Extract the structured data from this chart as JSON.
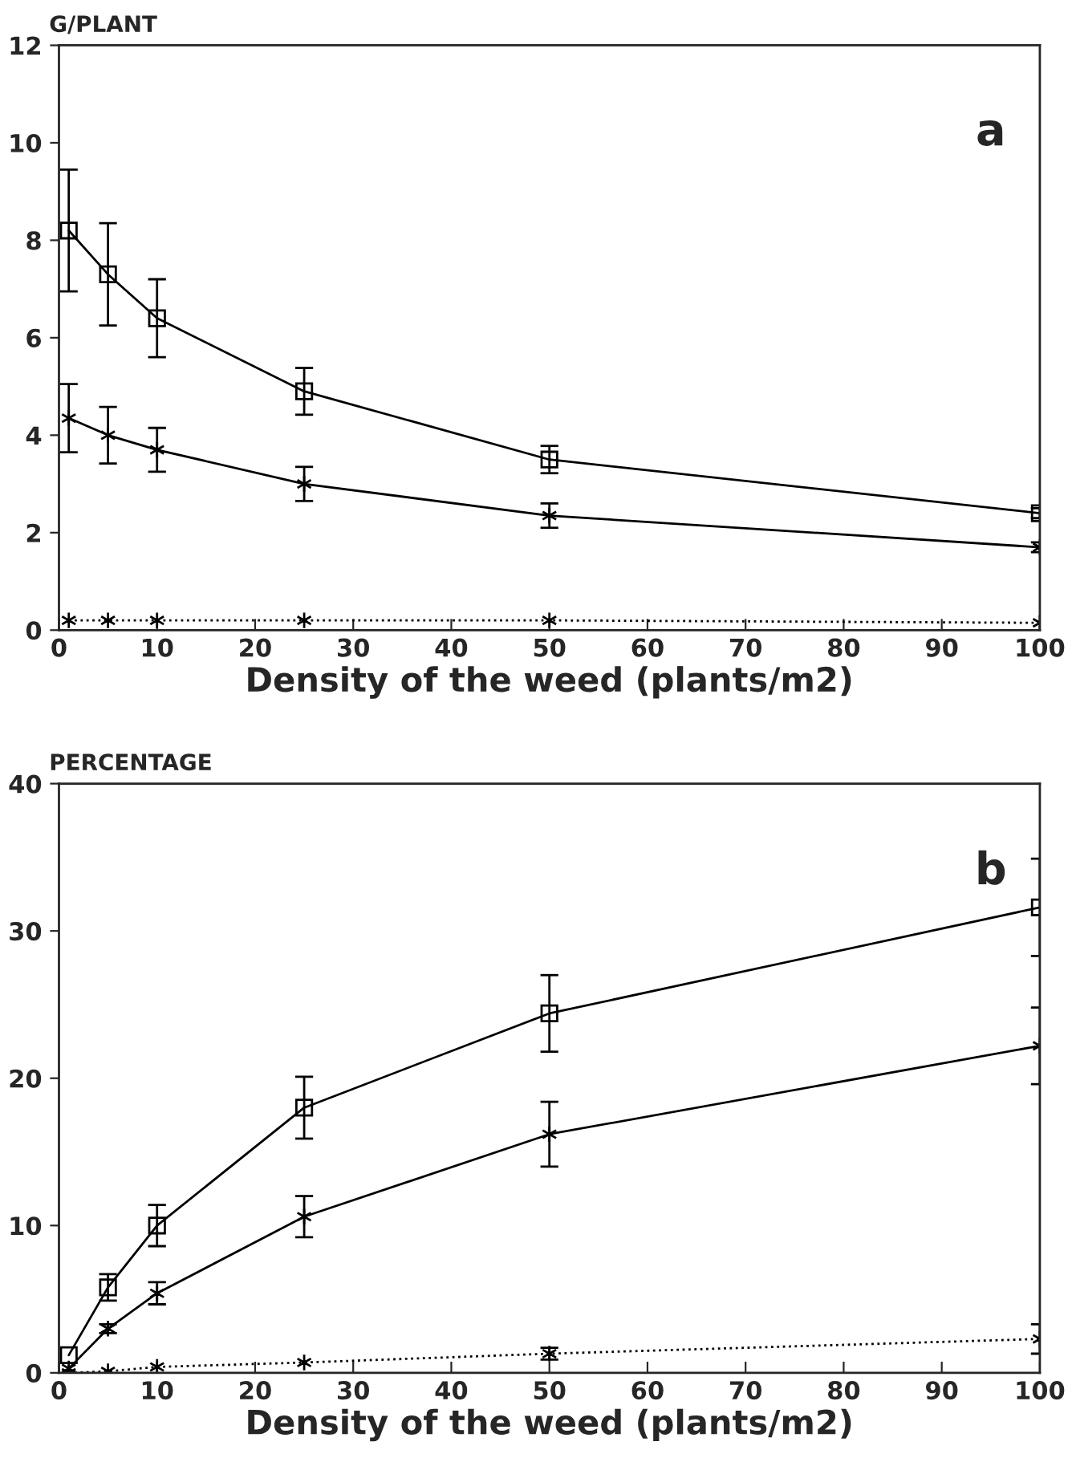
{
  "chart_data": [
    {
      "type": "line",
      "ylabel": "G/PLANT",
      "xlabel": "Density of the weed (plants/m2)",
      "annotations": [
        "a"
      ],
      "x": [
        1,
        5,
        10,
        25,
        50,
        100
      ],
      "xlim": [
        0,
        100
      ],
      "xticks": [
        0,
        10,
        20,
        30,
        40,
        50,
        60,
        70,
        80,
        90,
        100
      ],
      "ylim": [
        0,
        12
      ],
      "yticks": [
        0,
        2,
        4,
        6,
        8,
        10,
        12
      ],
      "grid": false,
      "legend": false,
      "series": [
        {
          "color": "#000000",
          "marker": "square",
          "line_style": "solid",
          "values": [
            8.2,
            7.3,
            6.4,
            4.9,
            3.5,
            2.4
          ],
          "errors": [
            1.25,
            1.05,
            0.8,
            0.48,
            0.28,
            0.1
          ]
        },
        {
          "color": "#000000",
          "marker": "cross",
          "line_style": "solid",
          "values": [
            4.35,
            4.0,
            3.7,
            3.0,
            2.35,
            1.7
          ],
          "errors": [
            0.7,
            0.58,
            0.45,
            0.35,
            0.25,
            0.1
          ]
        },
        {
          "color": "#000000",
          "marker": "cross",
          "line_style": "dotted",
          "values": [
            0.2,
            0.2,
            0.2,
            0.2,
            0.2,
            0.15
          ]
        }
      ]
    },
    {
      "type": "line",
      "ylabel": "PERCENTAGE",
      "xlabel": "Density of the weed (plants/m2)",
      "annotations": [
        "b"
      ],
      "x": [
        1,
        5,
        10,
        25,
        50,
        100
      ],
      "xlim": [
        0,
        100
      ],
      "xticks": [
        0,
        10,
        20,
        30,
        40,
        50,
        60,
        70,
        80,
        90,
        100
      ],
      "ylim": [
        0,
        40
      ],
      "yticks": [
        0,
        10,
        20,
        30,
        40
      ],
      "grid": false,
      "legend": false,
      "series": [
        {
          "color": "#000000",
          "marker": "square",
          "line_style": "solid",
          "values": [
            1.2,
            5.8,
            10.0,
            18.0,
            24.4,
            31.6
          ],
          "errors": [
            null,
            0.9,
            1.4,
            2.1,
            2.6,
            3.3
          ]
        },
        {
          "color": "#000000",
          "marker": "cross",
          "line_style": "solid",
          "values": [
            0.3,
            3.0,
            5.4,
            10.6,
            16.2,
            22.2
          ],
          "errors": [
            null,
            0.3,
            0.75,
            1.4,
            2.2,
            2.6
          ]
        },
        {
          "color": "#000000",
          "marker": "cross",
          "line_style": "dotted",
          "values": [
            0.0,
            0.1,
            0.4,
            0.7,
            1.3,
            2.3
          ],
          "errors": [
            null,
            null,
            null,
            null,
            0.4,
            1.0
          ]
        }
      ]
    }
  ]
}
